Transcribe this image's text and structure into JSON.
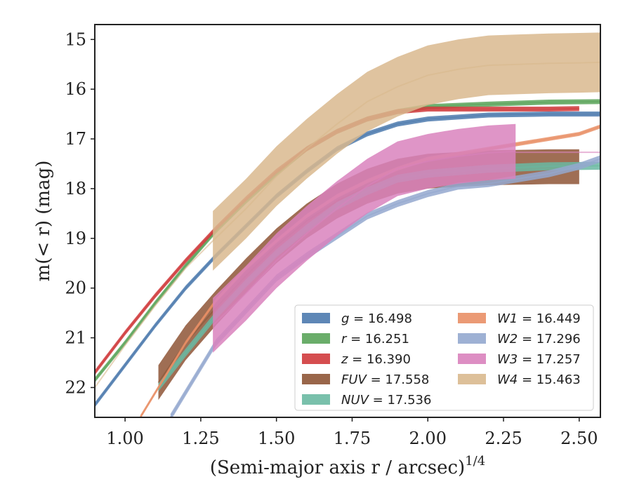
{
  "chart_data": {
    "type": "line",
    "xlabel": "(Semi-major axis r / arcsec)",
    "xlabel_superscript": "1/4",
    "ylabel": "m(< r) (mag)",
    "xlim": [
      0.9,
      2.57
    ],
    "ylim": [
      22.6,
      14.7
    ],
    "y_inverted": true,
    "xticks": [
      "1.00",
      "1.25",
      "1.50",
      "1.75",
      "2.00",
      "2.25",
      "2.50"
    ],
    "yticks": [
      "15",
      "16",
      "17",
      "18",
      "19",
      "20",
      "21",
      "22"
    ],
    "grid": false,
    "legend_position": "lower-right",
    "series": [
      {
        "name": "g = 16.498",
        "color": "#4c7aae",
        "x": [
          0.9,
          1.0,
          1.1,
          1.2,
          1.3,
          1.4,
          1.5,
          1.6,
          1.7,
          1.8,
          1.9,
          2.0,
          2.2,
          2.4,
          2.57
        ],
        "y": [
          22.35,
          21.55,
          20.75,
          20.0,
          19.35,
          18.75,
          18.15,
          17.65,
          17.2,
          16.9,
          16.7,
          16.6,
          16.52,
          16.5,
          16.5
        ],
        "band": 0.05
      },
      {
        "name": "r = 16.251",
        "color": "#5aa45a",
        "x": [
          0.9,
          1.0,
          1.1,
          1.2,
          1.3,
          1.4,
          1.5,
          1.6,
          1.7,
          1.8,
          1.9,
          2.0,
          2.2,
          2.4,
          2.57
        ],
        "y": [
          21.85,
          21.1,
          20.3,
          19.55,
          18.85,
          18.25,
          17.7,
          17.2,
          16.85,
          16.6,
          16.45,
          16.35,
          16.3,
          16.26,
          16.25
        ],
        "band": 0.05
      },
      {
        "name": "z = 16.390",
        "color": "#d03a3c",
        "x": [
          0.9,
          1.0,
          1.1,
          1.2,
          1.3,
          1.4,
          1.5,
          1.6,
          1.7,
          1.8,
          1.9,
          2.0,
          2.2,
          2.4,
          2.5
        ],
        "y": [
          21.7,
          20.9,
          20.15,
          19.45,
          18.8,
          18.2,
          17.65,
          17.2,
          16.85,
          16.6,
          16.45,
          16.4,
          16.4,
          16.4,
          16.39
        ],
        "band": 0.05
      },
      {
        "name": "FUV = 17.558",
        "color": "#8e5536",
        "x": [
          1.11,
          1.2,
          1.3,
          1.4,
          1.5,
          1.6,
          1.7,
          1.8,
          1.9,
          2.0,
          2.2,
          2.4,
          2.5
        ],
        "y": [
          21.9,
          21.1,
          20.4,
          19.75,
          19.15,
          18.65,
          18.25,
          17.95,
          17.75,
          17.65,
          17.58,
          17.56,
          17.56
        ],
        "band": 0.35
      },
      {
        "name": "NUV = 17.536",
        "color": "#6ab9a2",
        "x": [
          1.11,
          1.2,
          1.3,
          1.4,
          1.5,
          1.6,
          1.7,
          1.8,
          1.9,
          2.0,
          2.2,
          2.4,
          2.57
        ],
        "y": [
          22.0,
          21.3,
          20.55,
          19.9,
          19.3,
          18.8,
          18.35,
          18.05,
          17.8,
          17.7,
          17.6,
          17.55,
          17.54
        ],
        "band": 0.08
      },
      {
        "name": "W1 = 16.449",
        "color": "#e98f66",
        "x": [
          1.05,
          1.2,
          1.3,
          1.4,
          1.5,
          1.6,
          1.7,
          1.8,
          1.9,
          2.0,
          2.1,
          2.2,
          2.3,
          2.4,
          2.5,
          2.57
        ],
        "y": [
          22.6,
          21.1,
          20.25,
          19.6,
          19.05,
          18.55,
          18.15,
          17.85,
          17.6,
          17.4,
          17.3,
          17.2,
          17.1,
          17.0,
          16.9,
          16.75
        ],
        "band": 0.04
      },
      {
        "name": "W2 = 17.296",
        "color": "#94a8cf",
        "x": [
          1.15,
          1.3,
          1.4,
          1.5,
          1.6,
          1.7,
          1.8,
          1.9,
          2.0,
          2.1,
          2.2,
          2.3,
          2.4,
          2.5,
          2.57
        ],
        "y": [
          22.6,
          21.1,
          20.45,
          19.8,
          19.35,
          18.95,
          18.55,
          18.3,
          18.1,
          17.95,
          17.9,
          17.8,
          17.7,
          17.55,
          17.4
        ],
        "band": 0.07
      },
      {
        "name": "W3 = 17.257",
        "color": "#d982bd",
        "x": [
          1.29,
          1.4,
          1.5,
          1.6,
          1.7,
          1.8,
          1.9,
          2.0,
          2.1,
          2.2,
          2.29
        ],
        "y": [
          20.75,
          20.1,
          19.45,
          18.9,
          18.4,
          17.95,
          17.6,
          17.45,
          17.35,
          17.28,
          17.25
        ],
        "band": 0.55,
        "tail_x": [
          2.29,
          2.57
        ],
        "tail_y": [
          17.27,
          17.27
        ]
      },
      {
        "name": "W4 = 15.463",
        "color": "#d9b98e",
        "x": [
          1.29,
          1.4,
          1.5,
          1.6,
          1.7,
          1.8,
          1.9,
          2.0,
          2.1,
          2.2,
          2.3,
          2.4,
          2.5,
          2.57
        ],
        "y": [
          19.05,
          18.4,
          17.75,
          17.2,
          16.7,
          16.25,
          15.95,
          15.72,
          15.6,
          15.52,
          15.5,
          15.48,
          15.47,
          15.46
        ],
        "band": 0.6,
        "lead_x": [
          0.9,
          1.0,
          1.1,
          1.2,
          1.29
        ],
        "lead_y": [
          22.0,
          21.15,
          20.35,
          19.6,
          19.05
        ]
      }
    ]
  }
}
